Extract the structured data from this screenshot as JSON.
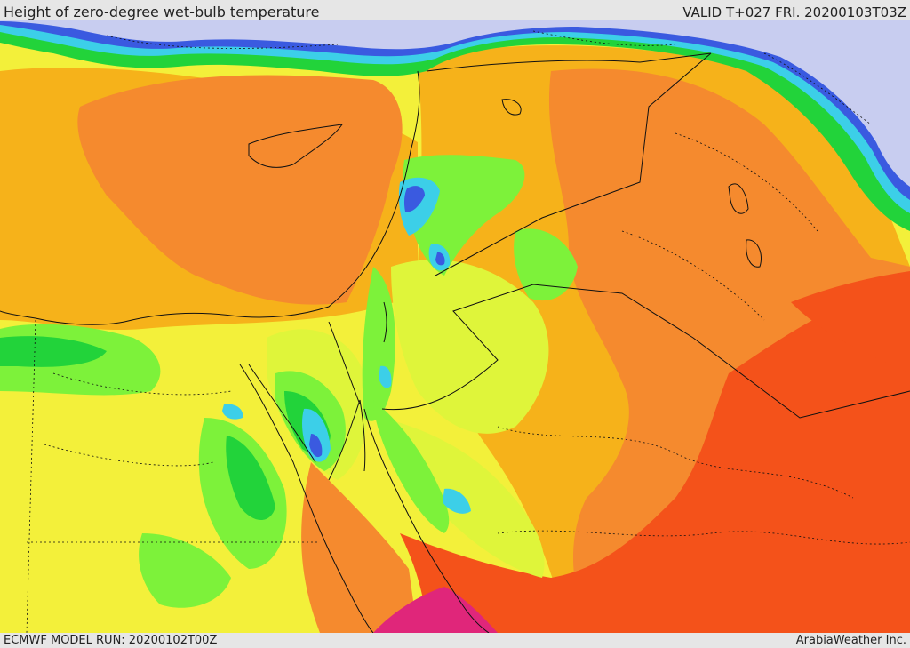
{
  "header": {
    "title": "Height of zero-degree wet-bulb temperature",
    "valid": "VALID T+027 FRI. 20200103T03Z"
  },
  "footer": {
    "model_run": "ECMWF MODEL RUN: 20200102T00Z",
    "credit": "ArabiaWeather Inc."
  },
  "map": {
    "palette": {
      "very_low": "#c8cdf0",
      "low_blue": "#3a5ae0",
      "cyan": "#3ccfe8",
      "green_dark": "#22d33a",
      "green": "#7df23a",
      "yellow_green": "#dff53a",
      "yellow": "#f3f03a",
      "orange_light": "#f6b21a",
      "orange": "#f58a2e",
      "red_orange": "#f4521a",
      "magenta": "#e0267a",
      "border": "#111111"
    }
  }
}
